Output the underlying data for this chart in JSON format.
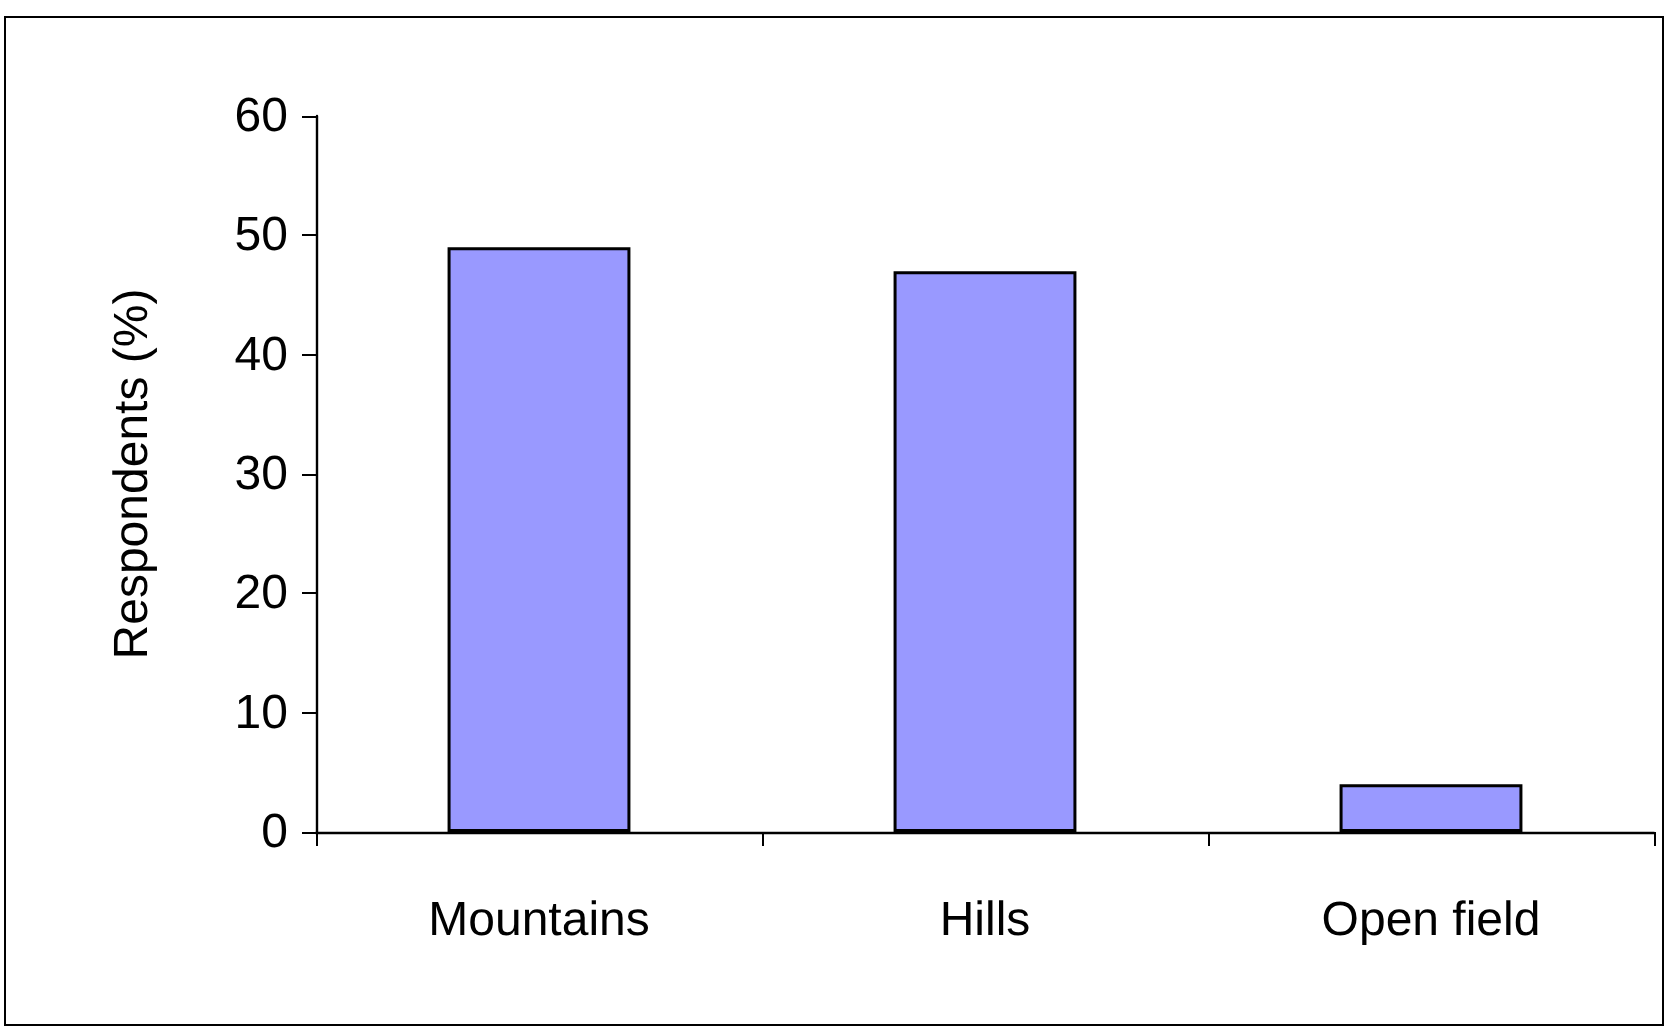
{
  "chart_data": {
    "type": "bar",
    "ylabel": "Respondents (%)",
    "categories": [
      "Mountains",
      "Hills",
      "Open field"
    ],
    "values": [
      49,
      47,
      4
    ],
    "color": "#9999ff",
    "ylim": [
      0,
      60
    ],
    "yticks": [
      0,
      10,
      20,
      30,
      40,
      50,
      60
    ],
    "grid": false
  }
}
